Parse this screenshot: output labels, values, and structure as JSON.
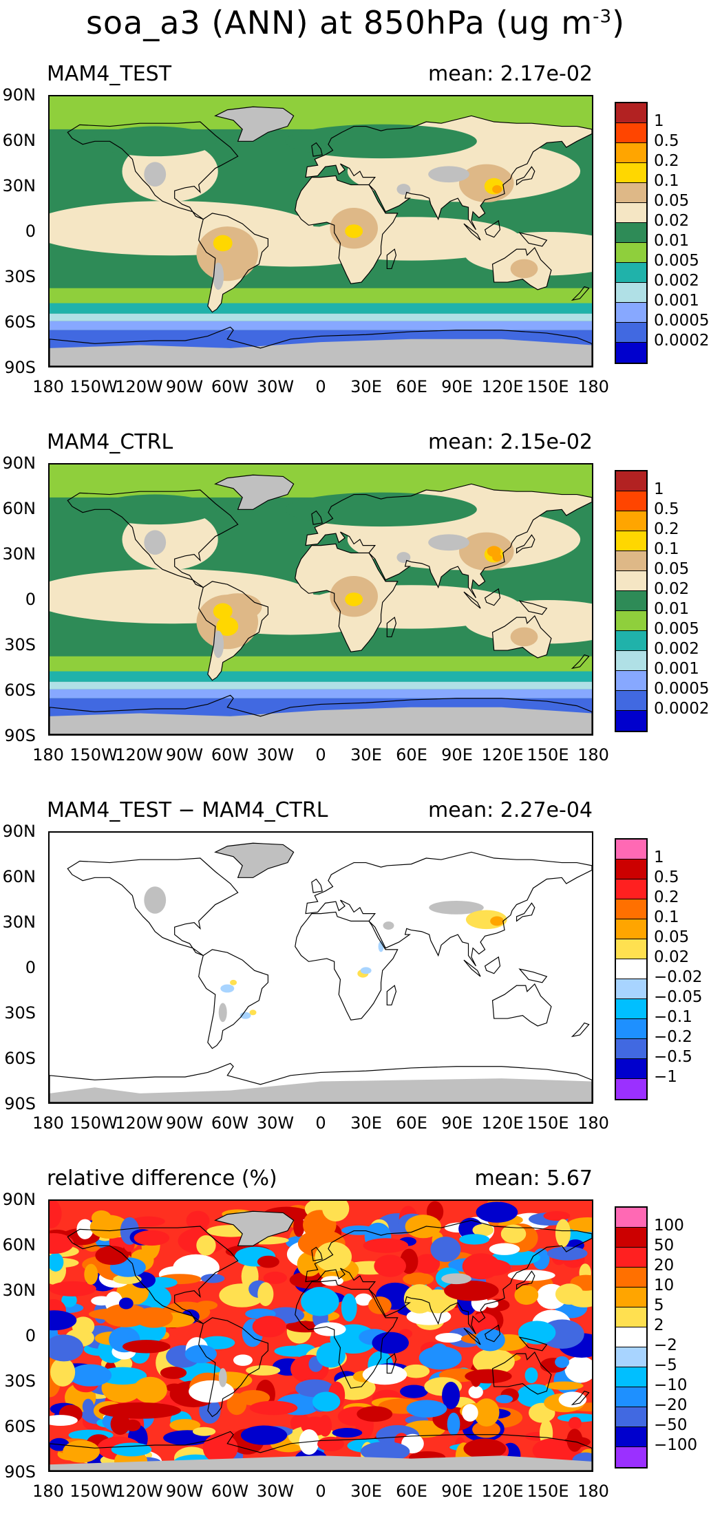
{
  "title": "soa_a3 (ANN) at 850hPa (ug m",
  "title_exp": "-3",
  "title_close": ")",
  "y_ticks": [
    "90N",
    "60N",
    "30N",
    "0",
    "30S",
    "60S",
    "90S"
  ],
  "x_ticks": [
    "180",
    "150W",
    "120W",
    "90W",
    "60W",
    "30W",
    "0",
    "30E",
    "60E",
    "90E",
    "120E",
    "150E",
    "180"
  ],
  "panels": [
    {
      "label": "MAM4_TEST",
      "mean_text": "mean: 2.17e-02",
      "type": "abs",
      "colorbar": {
        "labels": [
          "1",
          "0.5",
          "0.2",
          "0.1",
          "0.05",
          "0.02",
          "0.01",
          "0.005",
          "0.002",
          "0.001",
          "0.0005",
          "0.0002"
        ],
        "colors": [
          "#b22222",
          "#ff4500",
          "#ffa500",
          "#ffd700",
          "#deb887",
          "#f5e6c4",
          "#2e8b57",
          "#8fcf3c",
          "#20b2aa",
          "#b0e0e6",
          "#87a8ff",
          "#4169e1",
          "#0000cd"
        ]
      }
    },
    {
      "label": "MAM4_CTRL",
      "mean_text": "mean: 2.15e-02",
      "type": "abs",
      "colorbar": {
        "labels": [
          "1",
          "0.5",
          "0.2",
          "0.1",
          "0.05",
          "0.02",
          "0.01",
          "0.005",
          "0.002",
          "0.001",
          "0.0005",
          "0.0002"
        ],
        "colors": [
          "#b22222",
          "#ff4500",
          "#ffa500",
          "#ffd700",
          "#deb887",
          "#f5e6c4",
          "#2e8b57",
          "#8fcf3c",
          "#20b2aa",
          "#b0e0e6",
          "#87a8ff",
          "#4169e1",
          "#0000cd"
        ]
      }
    },
    {
      "label": "MAM4_TEST − MAM4_CTRL",
      "mean_text": "mean: 2.27e-04",
      "type": "diff",
      "colorbar": {
        "labels": [
          "1",
          "0.5",
          "0.2",
          "0.1",
          "0.05",
          "0.02",
          "−0.02",
          "−0.05",
          "−0.1",
          "−0.2",
          "−0.5",
          "−1"
        ],
        "colors": [
          "#ff69b4",
          "#cc0000",
          "#ff2020",
          "#ff7000",
          "#ffa500",
          "#ffe050",
          "#ffffff",
          "#a8d4ff",
          "#00bfff",
          "#1e90ff",
          "#4169e1",
          "#0000cd",
          "#9b30ff"
        ]
      }
    },
    {
      "label": "relative difference (%)",
      "mean_text": "mean:  5.67",
      "type": "rel",
      "colorbar": {
        "labels": [
          "100",
          "50",
          "20",
          "10",
          "5",
          "2",
          "−2",
          "−5",
          "−10",
          "−20",
          "−50",
          "−100"
        ],
        "colors": [
          "#ff69b4",
          "#cc0000",
          "#ff2020",
          "#ff7000",
          "#ffa500",
          "#ffe050",
          "#ffffff",
          "#a8d4ff",
          "#00bfff",
          "#1e90ff",
          "#4169e1",
          "#0000cd",
          "#9b30ff"
        ]
      }
    }
  ]
}
